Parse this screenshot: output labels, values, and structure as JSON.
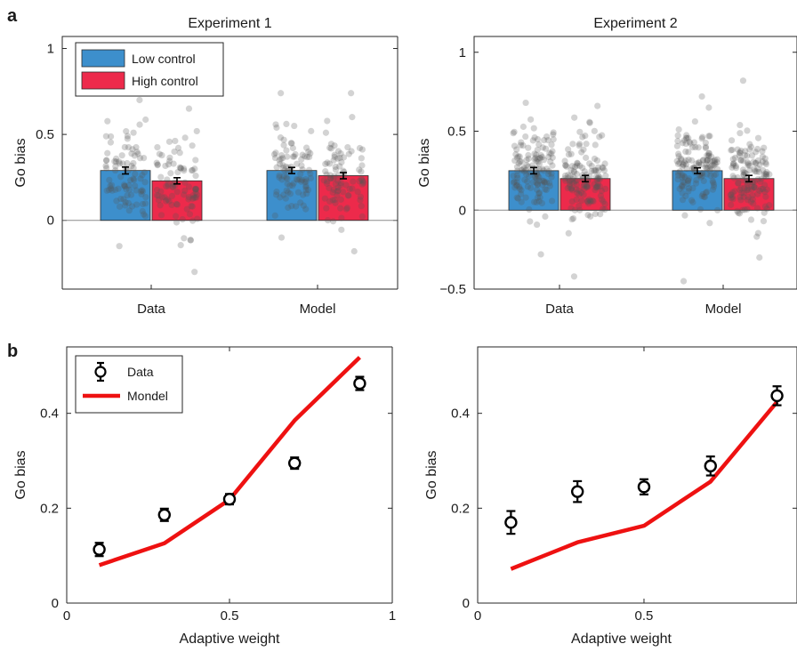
{
  "panel_letters": [
    "a",
    "b"
  ],
  "chart_data": [
    {
      "id": "a1",
      "type": "bar",
      "title": "Experiment 1",
      "ylabel": "Go bias",
      "xlabel": "",
      "categories": [
        "Data",
        "Model"
      ],
      "ylim": [
        -0.4,
        1.07
      ],
      "yticks": [
        0,
        0.5,
        1
      ],
      "ytick_labels": [
        "0",
        "0.5",
        "1"
      ],
      "series": [
        {
          "name": "Low control",
          "color": "#3d8fcc",
          "values": [
            0.29,
            0.29
          ],
          "errors": [
            0.02,
            0.018
          ]
        },
        {
          "name": "High control",
          "color": "#ed2a4b",
          "values": [
            0.23,
            0.26
          ],
          "errors": [
            0.018,
            0.018
          ]
        }
      ],
      "scatter": {
        "n": 90,
        "spread": [
          [
            0.2,
            0.2
          ],
          [
            0.24,
            0.22
          ]
        ],
        "min": [
          [
            -0.15,
            -0.1
          ],
          [
            -0.3,
            -0.18
          ]
        ],
        "max": [
          [
            0.7,
            0.74
          ],
          [
            0.65,
            0.74
          ]
        ]
      },
      "legend": {
        "position": "top-left"
      },
      "grid": false
    },
    {
      "id": "a2",
      "type": "bar",
      "title": "Experiment 2",
      "ylabel": "Go bias",
      "xlabel": "",
      "categories": [
        "Data",
        "Model"
      ],
      "ylim": [
        -0.5,
        1.1
      ],
      "yticks": [
        -0.5,
        0,
        0.5,
        1
      ],
      "ytick_labels": [
        "−0.5",
        "0",
        "0.5",
        "1"
      ],
      "series": [
        {
          "name": "Low control",
          "color": "#3d8fcc",
          "values": [
            0.25,
            0.25
          ],
          "errors": [
            0.02,
            0.018
          ]
        },
        {
          "name": "High control",
          "color": "#ed2a4b",
          "values": [
            0.2,
            0.2
          ],
          "errors": [
            0.02,
            0.02
          ]
        }
      ],
      "scatter": {
        "n": 140,
        "spread": [
          [
            0.2,
            0.2
          ],
          [
            0.22,
            0.22
          ]
        ],
        "min": [
          [
            -0.28,
            -0.45
          ],
          [
            -0.42,
            -0.3
          ]
        ],
        "max": [
          [
            0.68,
            0.72
          ],
          [
            0.66,
            0.82
          ]
        ]
      },
      "legend": {
        "position": "none"
      },
      "grid": false
    },
    {
      "id": "b1",
      "type": "line",
      "title": "",
      "ylabel": "Go bias",
      "xlabel": "Adaptive weight",
      "xlim": [
        0,
        1
      ],
      "ylim": [
        0,
        0.54
      ],
      "xticks": [
        0,
        0.5,
        1
      ],
      "xtick_labels": [
        "0",
        "0.5",
        "1"
      ],
      "yticks": [
        0,
        0.2,
        0.4
      ],
      "ytick_labels": [
        "0",
        "0.2",
        "0.4"
      ],
      "series": [
        {
          "name": "Data",
          "kind": "errorbar",
          "color": "#000000",
          "x": [
            0.1,
            0.3,
            0.5,
            0.7,
            0.9
          ],
          "y": [
            0.113,
            0.186,
            0.219,
            0.295,
            0.463
          ],
          "errors": [
            0.014,
            0.013,
            0.011,
            0.012,
            0.014
          ]
        },
        {
          "name": "Mondel",
          "kind": "line",
          "color": "#ee1111",
          "x": [
            0.1,
            0.3,
            0.5,
            0.7,
            0.9
          ],
          "y": [
            0.08,
            0.126,
            0.218,
            0.385,
            0.518
          ]
        }
      ],
      "legend": {
        "position": "top-left"
      },
      "grid": false
    },
    {
      "id": "b2",
      "type": "line",
      "title": "",
      "ylabel": "Go bias",
      "xlabel": "Adaptive weight",
      "xlim": [
        0,
        0.96
      ],
      "ylim": [
        0,
        0.54
      ],
      "xticks": [
        0,
        0.5
      ],
      "xtick_labels": [
        "0",
        "0.5"
      ],
      "yticks": [
        0,
        0.2,
        0.4
      ],
      "ytick_labels": [
        "0",
        "0.2",
        "0.4"
      ],
      "series": [
        {
          "name": "Data",
          "kind": "errorbar",
          "color": "#000000",
          "x": [
            0.1,
            0.3,
            0.5,
            0.7,
            0.9
          ],
          "y": [
            0.17,
            0.235,
            0.245,
            0.289,
            0.437
          ],
          "errors": [
            0.024,
            0.022,
            0.016,
            0.02,
            0.02
          ]
        },
        {
          "name": "Model",
          "kind": "line",
          "color": "#ee1111",
          "x": [
            0.1,
            0.3,
            0.5,
            0.7,
            0.9
          ],
          "y": [
            0.072,
            0.128,
            0.163,
            0.256,
            0.424
          ]
        }
      ],
      "legend": {
        "position": "none"
      },
      "grid": false
    }
  ]
}
